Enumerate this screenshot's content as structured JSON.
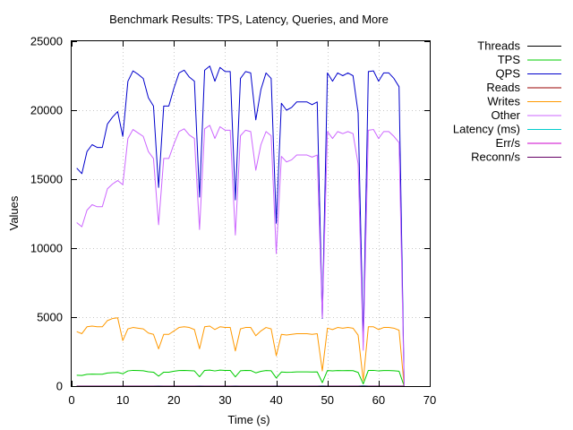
{
  "chart_data": {
    "type": "line",
    "title": "Benchmark Results: TPS, Latency, Queries, and More",
    "xlabel": "Time (s)",
    "ylabel": "Values",
    "xlim": [
      0,
      70
    ],
    "ylim": [
      0,
      25000
    ],
    "xticks": [
      "0",
      "10",
      "20",
      "30",
      "40",
      "50",
      "60",
      "70"
    ],
    "yticks": [
      "0",
      "5000",
      "10000",
      "15000",
      "20000",
      "25000"
    ],
    "grid": true,
    "legend_position": "outside-right",
    "x": [
      1,
      2,
      3,
      4,
      5,
      6,
      7,
      8,
      9,
      10,
      11,
      12,
      13,
      14,
      15,
      16,
      17,
      18,
      19,
      20,
      21,
      22,
      23,
      24,
      25,
      26,
      27,
      28,
      29,
      30,
      31,
      32,
      33,
      34,
      35,
      36,
      37,
      38,
      39,
      40,
      41,
      42,
      43,
      44,
      45,
      46,
      47,
      48,
      49,
      50,
      51,
      52,
      53,
      54,
      55,
      56,
      57,
      58,
      59,
      60,
      61,
      62,
      63,
      64,
      65
    ],
    "series": [
      {
        "name": "Threads",
        "color": "#000000",
        "values": [
          4,
          4,
          4,
          4,
          4,
          4,
          4,
          4,
          4,
          4,
          4,
          4,
          4,
          4,
          4,
          4,
          4,
          4,
          4,
          4,
          4,
          4,
          4,
          4,
          4,
          4,
          4,
          4,
          4,
          4,
          4,
          4,
          4,
          4,
          4,
          4,
          4,
          4,
          4,
          4,
          4,
          4,
          4,
          4,
          4,
          4,
          4,
          4,
          4,
          4,
          4,
          4,
          4,
          4,
          4,
          4,
          4,
          4,
          4,
          4,
          4,
          4,
          4,
          4,
          0
        ]
      },
      {
        "name": "TPS",
        "color": "#00cc00",
        "values": [
          790,
          770,
          850,
          870,
          860,
          860,
          950,
          970,
          990,
          900,
          1100,
          1140,
          1130,
          1110,
          1040,
          1010,
          720,
          1010,
          1010,
          1080,
          1130,
          1140,
          1120,
          1100,
          680,
          1140,
          1160,
          1100,
          1160,
          1140,
          1140,
          670,
          1110,
          1140,
          1130,
          960,
          1070,
          1130,
          1110,
          590,
          1020,
          1000,
          1010,
          1030,
          1030,
          1030,
          1020,
          1030,
          250,
          1130,
          1100,
          1130,
          1120,
          1130,
          1120,
          990,
          160,
          1140,
          1140,
          1100,
          1130,
          1130,
          1110,
          1080,
          0
        ]
      },
      {
        "name": "QPS",
        "color": "#0000cc",
        "values": [
          15800,
          15400,
          17000,
          17500,
          17300,
          17300,
          19000,
          19500,
          19900,
          18100,
          22100,
          22850,
          22600,
          22300,
          20900,
          20300,
          14400,
          20300,
          20300,
          21600,
          22700,
          22900,
          22400,
          22100,
          13700,
          22900,
          23200,
          22100,
          23100,
          22800,
          22800,
          13500,
          22300,
          22800,
          22700,
          19300,
          21500,
          22700,
          22300,
          11800,
          20500,
          20000,
          20200,
          20600,
          20600,
          20600,
          20400,
          20600,
          4900,
          22700,
          22100,
          22700,
          22500,
          22700,
          22500,
          19800,
          3200,
          22800,
          22850,
          22100,
          22700,
          22700,
          22300,
          21700,
          0
        ]
      },
      {
        "name": "Reads",
        "color": "#990000",
        "values": [
          0,
          0,
          0,
          0,
          0,
          0,
          0,
          0,
          0,
          0,
          0,
          0,
          0,
          0,
          0,
          0,
          0,
          0,
          0,
          0,
          0,
          0,
          0,
          0,
          0,
          0,
          0,
          0,
          0,
          0,
          0,
          0,
          0,
          0,
          0,
          0,
          0,
          0,
          0,
          0,
          0,
          0,
          0,
          0,
          0,
          0,
          0,
          0,
          0,
          0,
          0,
          0,
          0,
          0,
          0,
          0,
          0,
          0,
          0,
          0,
          0,
          0,
          0,
          0,
          0
        ]
      },
      {
        "name": "Writes",
        "color": "#ff9900",
        "values": [
          3950,
          3800,
          4300,
          4350,
          4300,
          4300,
          4750,
          4900,
          4950,
          3300,
          4150,
          4250,
          4200,
          4150,
          3850,
          3750,
          2700,
          3750,
          3750,
          4000,
          4250,
          4300,
          4250,
          4100,
          2700,
          4300,
          4350,
          4100,
          4300,
          4250,
          4250,
          2550,
          4150,
          4250,
          4250,
          3650,
          4000,
          4250,
          4150,
          2200,
          3750,
          3700,
          3750,
          3800,
          3800,
          3800,
          3750,
          3800,
          1100,
          4200,
          4100,
          4250,
          4200,
          4250,
          4200,
          3700,
          400,
          4300,
          4300,
          4100,
          4250,
          4250,
          4200,
          4050,
          0
        ]
      },
      {
        "name": "Other",
        "color": "#cc66ff",
        "values": [
          11850,
          11550,
          12750,
          13150,
          13000,
          13000,
          14300,
          14650,
          14900,
          14600,
          17950,
          18600,
          18350,
          18100,
          17000,
          16500,
          11700,
          16500,
          16500,
          17550,
          18450,
          18650,
          18200,
          17950,
          11350,
          18650,
          18900,
          17950,
          18800,
          18550,
          18550,
          10950,
          18150,
          18550,
          18450,
          15650,
          17500,
          18450,
          18150,
          9600,
          16650,
          16250,
          16400,
          16750,
          16750,
          16750,
          16600,
          16750,
          4950,
          18450,
          17950,
          18450,
          18300,
          18450,
          18300,
          16100,
          2600,
          18550,
          18600,
          17950,
          18450,
          18450,
          18100,
          17650,
          0
        ]
      },
      {
        "name": "Latency (ms)",
        "color": "#00cccc",
        "values": [
          3,
          3,
          3,
          3,
          3,
          3,
          3,
          3,
          3,
          3,
          3,
          3,
          3,
          3,
          3,
          3,
          5,
          3,
          3,
          3,
          3,
          3,
          3,
          3,
          5,
          3,
          3,
          3,
          3,
          3,
          3,
          5,
          3,
          3,
          3,
          3,
          3,
          3,
          3,
          6,
          3,
          3,
          3,
          3,
          3,
          3,
          3,
          3,
          15,
          3,
          3,
          3,
          3,
          3,
          3,
          3,
          25,
          3,
          3,
          3,
          3,
          3,
          3,
          3,
          0
        ]
      },
      {
        "name": "Err/s",
        "color": "#cc00cc",
        "values": [
          0,
          0,
          0,
          0,
          0,
          0,
          0,
          0,
          0,
          0,
          0,
          0,
          0,
          0,
          0,
          0,
          0,
          0,
          0,
          0,
          0,
          0,
          0,
          0,
          0,
          0,
          0,
          0,
          0,
          0,
          0,
          0,
          0,
          0,
          0,
          0,
          0,
          0,
          0,
          0,
          0,
          0,
          0,
          0,
          0,
          0,
          0,
          0,
          0,
          0,
          0,
          0,
          0,
          0,
          0,
          0,
          0,
          0,
          0,
          0,
          0,
          0,
          0,
          0,
          0
        ]
      },
      {
        "name": "Reconn/s",
        "color": "#660066",
        "values": [
          0,
          0,
          0,
          0,
          0,
          0,
          0,
          0,
          0,
          0,
          0,
          0,
          0,
          0,
          0,
          0,
          0,
          0,
          0,
          0,
          0,
          0,
          0,
          0,
          0,
          0,
          0,
          0,
          0,
          0,
          0,
          0,
          0,
          0,
          0,
          0,
          0,
          0,
          0,
          0,
          0,
          0,
          0,
          0,
          0,
          0,
          0,
          0,
          0,
          0,
          0,
          0,
          0,
          0,
          0,
          0,
          0,
          0,
          0,
          0,
          0,
          0,
          0,
          0,
          0
        ]
      }
    ]
  }
}
